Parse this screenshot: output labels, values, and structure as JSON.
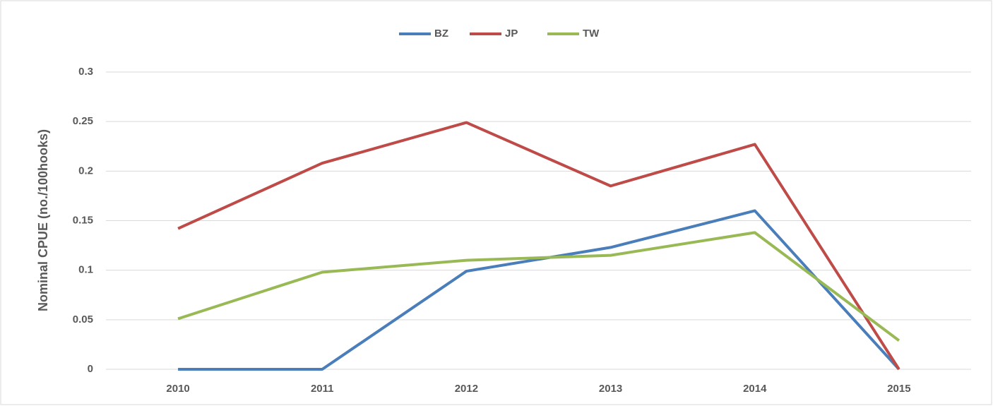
{
  "chart_data": {
    "type": "line",
    "y_label": "Nominal CPUE (no./100hooks)",
    "categories": [
      "2010",
      "2011",
      "2012",
      "2013",
      "2014",
      "2015"
    ],
    "series": [
      {
        "name": "BZ",
        "color": "#4a7ebb",
        "values": [
          0,
          0,
          0.099,
          0.123,
          0.16,
          0
        ]
      },
      {
        "name": "JP",
        "color": "#be4b48",
        "values": [
          0.142,
          0.208,
          0.249,
          0.185,
          0.227,
          0
        ]
      },
      {
        "name": "TW",
        "color": "#98b954",
        "values": [
          0.051,
          0.098,
          0.11,
          0.115,
          0.138,
          0.029
        ]
      }
    ],
    "ylim": [
      0,
      0.3
    ],
    "yticks": [
      0,
      0.05,
      0.1,
      0.15,
      0.2,
      0.25,
      0.3
    ],
    "grid": true,
    "legend": "top"
  }
}
